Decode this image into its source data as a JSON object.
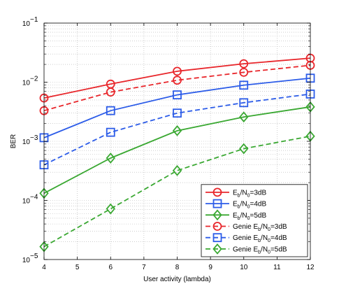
{
  "chart_data": {
    "type": "line",
    "xlabel": "User activity (lambda)",
    "ylabel": "BER",
    "xlim": [
      4,
      12
    ],
    "ylim_log10": [
      -5,
      -1
    ],
    "y_scale": "log",
    "grid": true,
    "legend_position": "bottom-right",
    "x_ticks": [
      "4",
      "5",
      "6",
      "7",
      "8",
      "9",
      "10",
      "11",
      "12"
    ],
    "y_ticks": [
      {
        "exp": -1,
        "base": "10",
        "power": "−1"
      },
      {
        "exp": -2,
        "base": "10",
        "power": "−2"
      },
      {
        "exp": -3,
        "base": "10",
        "power": "−3"
      },
      {
        "exp": -4,
        "base": "10",
        "power": "−4"
      },
      {
        "exp": -5,
        "base": "10",
        "power": "−5"
      }
    ],
    "x": [
      4,
      6,
      8,
      10,
      12
    ],
    "series": [
      {
        "legend": {
          "prefix": "",
          "n": "E",
          "sub1": "b",
          "mid": "/N",
          "sub2": "0",
          "suffix": "=3dB"
        },
        "color": "#e8262b",
        "dash": "solid",
        "marker": "circle",
        "values": [
          0.0054,
          0.0093,
          0.0153,
          0.0205,
          0.0255
        ]
      },
      {
        "legend": {
          "prefix": "",
          "n": "E",
          "sub1": "b",
          "mid": "/N",
          "sub2": "0",
          "suffix": "=4dB"
        },
        "color": "#2c5ce8",
        "dash": "solid",
        "marker": "square",
        "values": [
          0.00115,
          0.0033,
          0.0061,
          0.0089,
          0.0117
        ]
      },
      {
        "legend": {
          "prefix": "",
          "n": "E",
          "sub1": "b",
          "mid": "/N",
          "sub2": "0",
          "suffix": "=5dB"
        },
        "color": "#3aa832",
        "dash": "solid",
        "marker": "diamond",
        "values": [
          0.000132,
          0.00052,
          0.00151,
          0.00258,
          0.00382
        ]
      },
      {
        "legend": {
          "prefix": "Genie ",
          "n": "E",
          "sub1": "b",
          "mid": "/N",
          "sub2": "0",
          "suffix": "=3dB"
        },
        "color": "#e8262b",
        "dash": "dashed",
        "marker": "circle",
        "values": [
          0.0033,
          0.0068,
          0.0108,
          0.0147,
          0.0193
        ]
      },
      {
        "legend": {
          "prefix": "Genie ",
          "n": "E",
          "sub1": "b",
          "mid": "/N",
          "sub2": "0",
          "suffix": "=4dB"
        },
        "color": "#2c5ce8",
        "dash": "dashed",
        "marker": "square",
        "values": [
          0.0004,
          0.00142,
          0.003,
          0.0045,
          0.0063
        ]
      },
      {
        "legend": {
          "prefix": "Genie ",
          "n": "E",
          "sub1": "b",
          "mid": "/N",
          "sub2": "0",
          "suffix": "=5dB"
        },
        "color": "#3aa832",
        "dash": "dashed",
        "marker": "diamond",
        "values": [
          1.65e-05,
          7.2e-05,
          0.00032,
          0.00075,
          0.00122
        ]
      }
    ]
  }
}
